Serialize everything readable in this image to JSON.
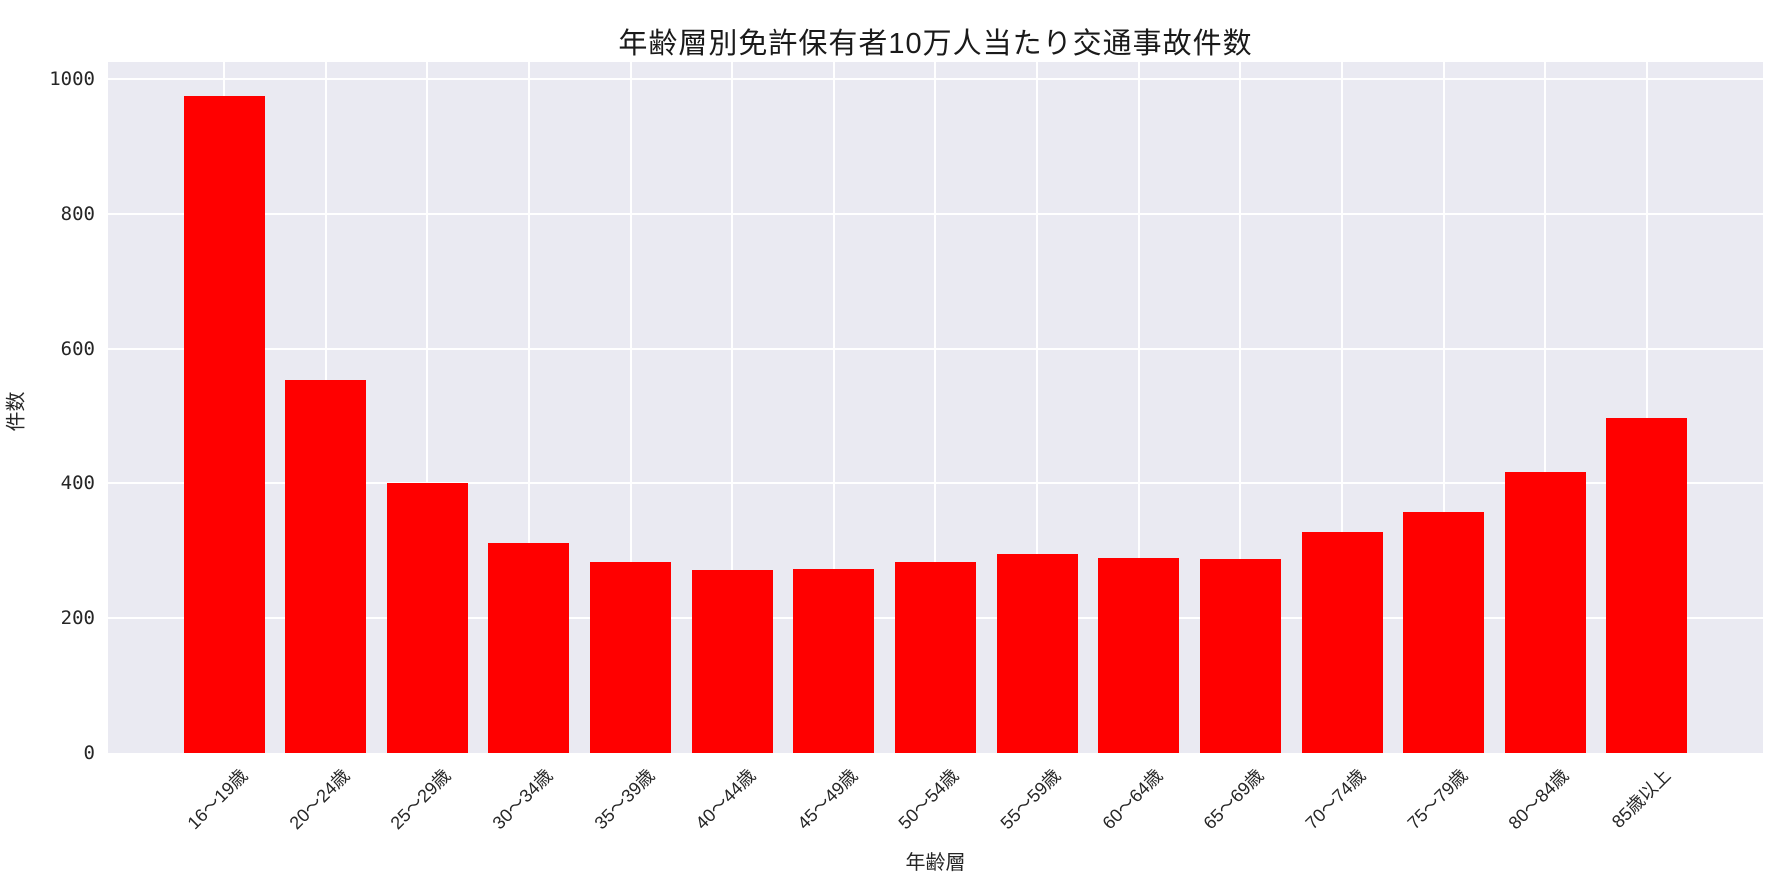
{
  "chart_data": {
    "type": "bar",
    "title": "年齢層別免許保有者10万人当たり交通事故件数",
    "xlabel": "年齢層",
    "ylabel": "件数",
    "categories": [
      "16〜19歳",
      "20〜24歳",
      "25〜29歳",
      "30〜34歳",
      "35〜39歳",
      "40〜44歳",
      "45〜49歳",
      "50〜54歳",
      "55〜59歳",
      "60〜64歳",
      "65〜69歳",
      "70〜74歳",
      "75〜79歳",
      "80〜84歳",
      "85歳以上"
    ],
    "values": [
      975,
      553,
      400,
      311,
      283,
      272,
      273,
      283,
      295,
      289,
      288,
      328,
      357,
      417,
      497
    ],
    "ytick_labels": [
      "0",
      "200",
      "400",
      "600",
      "800",
      "1000"
    ],
    "ytick_values": [
      0,
      200,
      400,
      600,
      800,
      1000
    ],
    "ylim": [
      0,
      1025
    ],
    "x_tick_rotation": -45,
    "grid": "on",
    "legend": "none",
    "colors": {
      "bar": "#ff0000",
      "plot_background": "#eaeaf2",
      "grid": "#ffffff",
      "text": "#262626",
      "page_background": "#ffffff"
    }
  }
}
